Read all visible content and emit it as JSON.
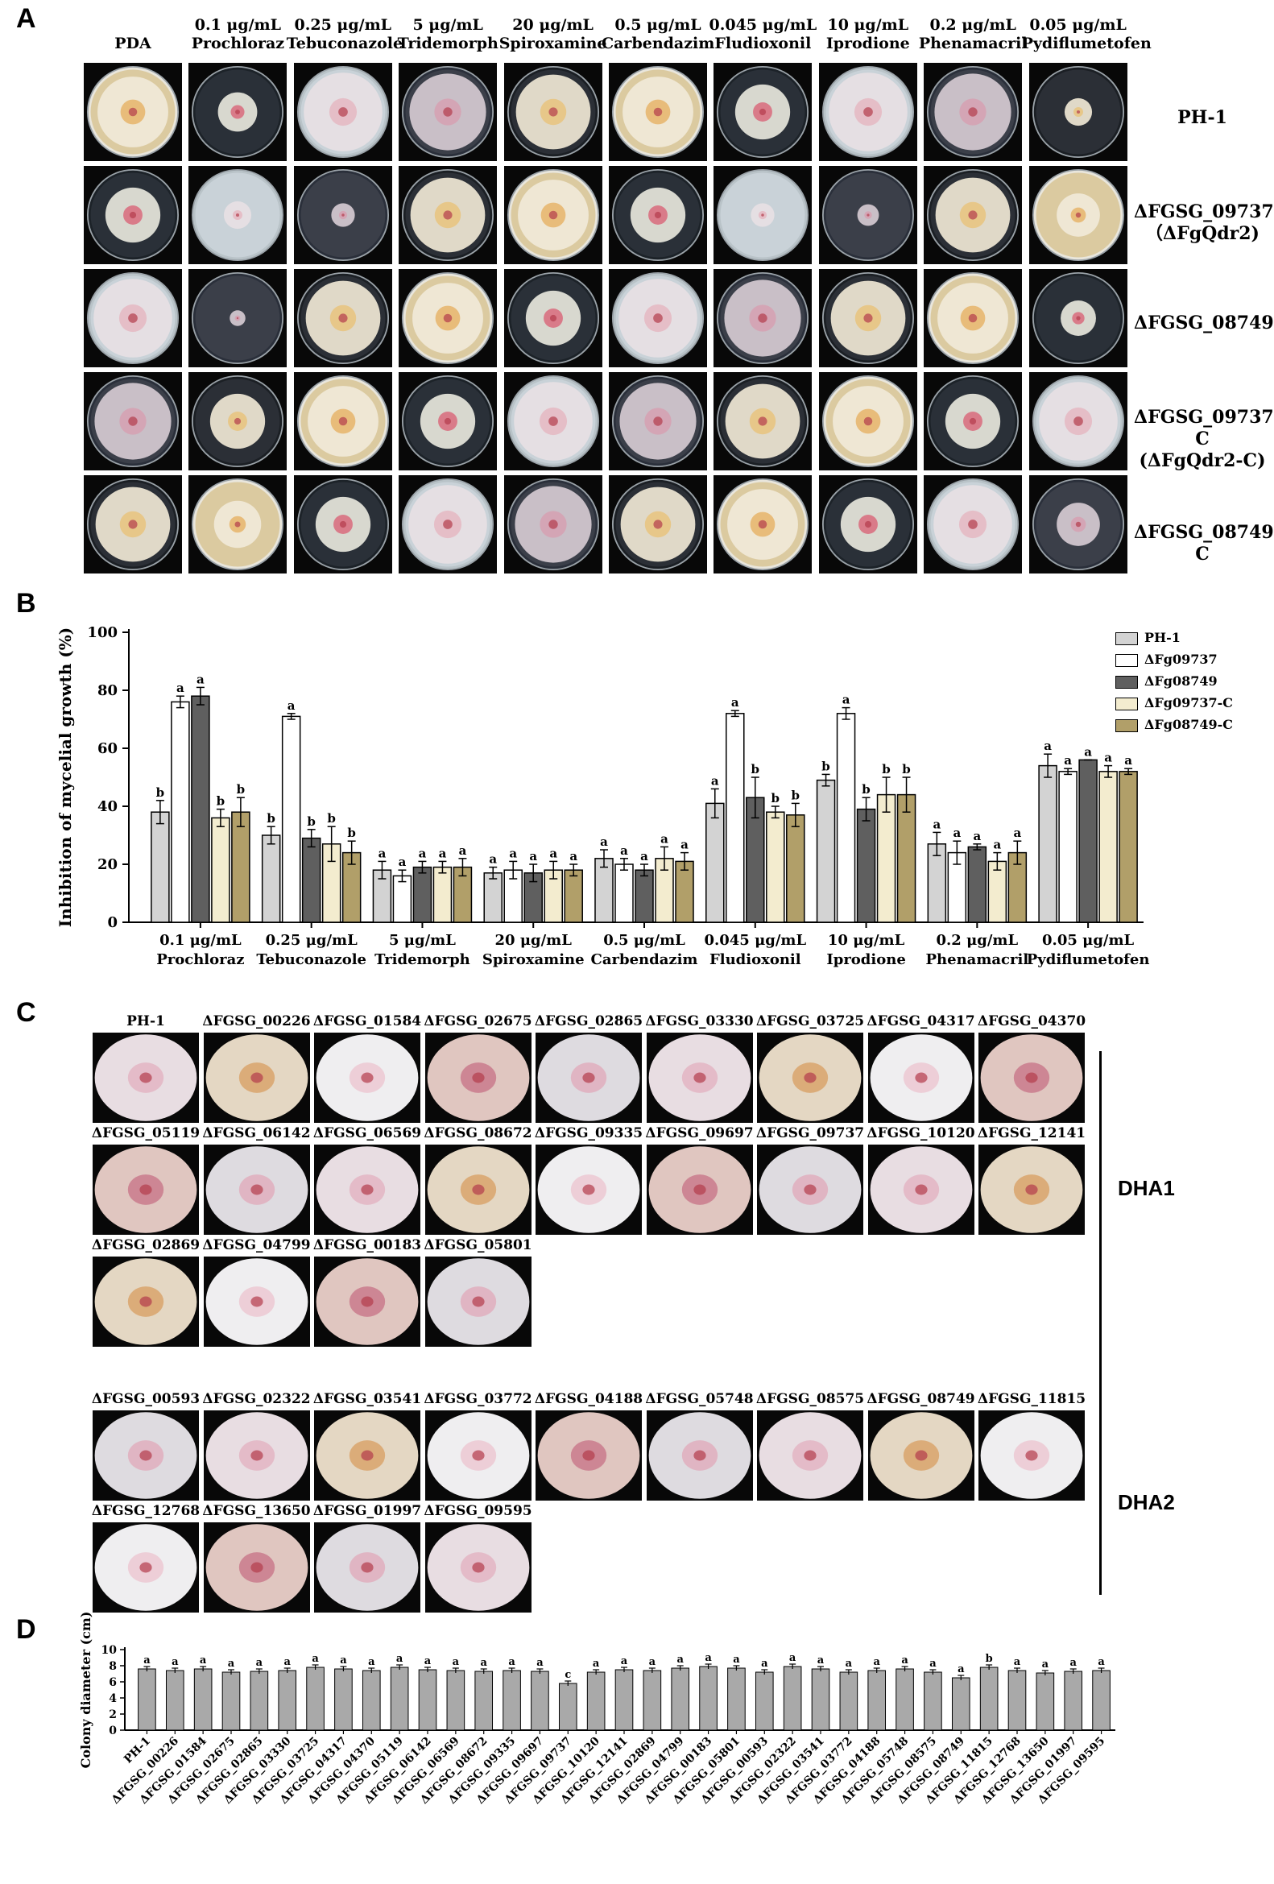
{
  "panels": {
    "a": "A",
    "b": "B",
    "c": "C",
    "d": "D"
  },
  "panelA": {
    "columns": [
      {
        "line1": "",
        "line2": "PDA"
      },
      {
        "line1": "0.1 μg/mL",
        "line2": "Prochloraz"
      },
      {
        "line1": "0.25 μg/mL",
        "line2": "Tebuconazole"
      },
      {
        "line1": "5 μg/mL",
        "line2": "Tridemorph"
      },
      {
        "line1": "20 μg/mL",
        "line2": "Spiroxamine"
      },
      {
        "line1": "0.5 μg/mL",
        "line2": "Carbendazim"
      },
      {
        "line1": "0.045 μg/mL",
        "line2": "Fludioxonil"
      },
      {
        "line1": "10 μg/mL",
        "line2": "Iprodione"
      },
      {
        "line1": "0.2 μg/mL",
        "line2": "Phenamacril"
      },
      {
        "line1": "0.05 μg/mL",
        "line2": "Pydiflumetofen"
      }
    ],
    "rows": [
      {
        "line1": "PH-1",
        "line2": ""
      },
      {
        "line1": "ΔFGSG_09737",
        "line2": "（ΔFgQdr2)"
      },
      {
        "line1": "ΔFGSG_08749",
        "line2": ""
      },
      {
        "line1": "ΔFGSG_09737-C",
        "line2": "(ΔFgQdr2-C)"
      },
      {
        "line1": "ΔFGSG_08749-C",
        "line2": ""
      }
    ]
  },
  "chart_data": [
    {
      "type": "bar",
      "ylabel": "Inhibition of mycelial growth (%)",
      "ylim": [
        0,
        100
      ],
      "yticks": [
        "0",
        "20",
        "40",
        "60",
        "80",
        "100"
      ],
      "categories": [
        {
          "line1": "0.1 μg/mL",
          "line2": "Prochloraz"
        },
        {
          "line1": "0.25 μg/mL",
          "line2": "Tebuconazole"
        },
        {
          "line1": "5 μg/mL",
          "line2": "Tridemorph"
        },
        {
          "line1": "20 μg/mL",
          "line2": "Spiroxamine"
        },
        {
          "line1": "0.5 μg/mL",
          "line2": "Carbendazim"
        },
        {
          "line1": "0.045 μg/mL",
          "line2": "Fludioxonil"
        },
        {
          "line1": "10 μg/mL",
          "line2": "Iprodione"
        },
        {
          "line1": "0.2 μg/mL",
          "line2": "Phenamacril"
        },
        {
          "line1": "0.05 μg/mL",
          "line2": "Pydiflumetofen"
        }
      ],
      "series": [
        {
          "name": "PH-1",
          "color": "#d3d3d3",
          "values": [
            38,
            30,
            18,
            17,
            22,
            41,
            49,
            27,
            54
          ],
          "errors": [
            4,
            3,
            3,
            2,
            3,
            5,
            2,
            4,
            4
          ],
          "letters": [
            "b",
            "b",
            "a",
            "a",
            "a",
            "a",
            "b",
            "a",
            "a"
          ]
        },
        {
          "name": "ΔFg09737",
          "color": "#ffffff",
          "values": [
            76,
            71,
            16,
            18,
            20,
            72,
            72,
            24,
            52
          ],
          "errors": [
            2,
            1,
            2,
            3,
            2,
            1,
            2,
            4,
            1
          ],
          "letters": [
            "a",
            "a",
            "a",
            "a",
            "a",
            "a",
            "a",
            "a",
            "a"
          ]
        },
        {
          "name": "ΔFg08749",
          "color": "#5f5f5f",
          "values": [
            78,
            29,
            19,
            17,
            18,
            43,
            39,
            26,
            56
          ],
          "errors": [
            3,
            3,
            2,
            3,
            2,
            7,
            4,
            1,
            0
          ],
          "letters": [
            "a",
            "b",
            "a",
            "a",
            "a",
            "b",
            "b",
            "a",
            "a"
          ]
        },
        {
          "name": "ΔFg09737-C",
          "color": "#f3eccf",
          "values": [
            36,
            27,
            19,
            18,
            22,
            38,
            44,
            21,
            52
          ],
          "errors": [
            3,
            6,
            2,
            3,
            4,
            2,
            6,
            3,
            2
          ],
          "letters": [
            "b",
            "b",
            "a",
            "a",
            "a",
            "b",
            "b",
            "a",
            "a"
          ]
        },
        {
          "name": "ΔFg08749-C",
          "color": "#b19f69",
          "values": [
            38,
            24,
            19,
            18,
            21,
            37,
            44,
            24,
            52
          ],
          "errors": [
            5,
            4,
            3,
            2,
            3,
            4,
            6,
            4,
            1
          ],
          "letters": [
            "b",
            "b",
            "a",
            "a",
            "a",
            "b",
            "b",
            "a",
            "a"
          ]
        }
      ]
    },
    {
      "type": "bar",
      "ylabel": "Colony diameter (cm)",
      "ylim": [
        0,
        10
      ],
      "yticks": [
        "0",
        "2",
        "4",
        "6",
        "8",
        "10"
      ],
      "categories": [
        "PH-1",
        "ΔFGSG_00226",
        "ΔFGSG_01584",
        "ΔFGSG_02675",
        "ΔFGSG_02865",
        "ΔFGSG_03330",
        "ΔFGSG_03725",
        "ΔFGSG_04317",
        "ΔFGSG_04370",
        "ΔFGSG_05119",
        "ΔFGSG_06142",
        "ΔFGSG_06569",
        "ΔFGSG_08672",
        "ΔFGSG_09335",
        "ΔFGSG_09697",
        "ΔFGSG_09737",
        "ΔFGSG_10120",
        "ΔFGSG_12141",
        "ΔFGSG_02869",
        "ΔFGSG_04799",
        "ΔFGSG_00183",
        "ΔFGSG_05801",
        "ΔFGSG_00593",
        "ΔFGSG_02322",
        "ΔFGSG_03541",
        "ΔFGSG_03772",
        "ΔFGSG_04188",
        "ΔFGSG_05748",
        "ΔFGSG_08575",
        "ΔFGSG_08749",
        "ΔFGSG_11815",
        "ΔFGSG_12768",
        "ΔFGSG_13650",
        "ΔFGSG_01997",
        "ΔFGSG_09595"
      ],
      "values": [
        7.6,
        7.4,
        7.6,
        7.2,
        7.3,
        7.4,
        7.8,
        7.6,
        7.4,
        7.8,
        7.5,
        7.4,
        7.3,
        7.4,
        7.3,
        5.8,
        7.2,
        7.5,
        7.4,
        7.7,
        7.9,
        7.7,
        7.2,
        7.9,
        7.6,
        7.2,
        7.4,
        7.6,
        7.2,
        6.5,
        7.8,
        7.4,
        7.1,
        7.3,
        7.4
      ],
      "letters": [
        "a",
        "a",
        "a",
        "a",
        "a",
        "a",
        "a",
        "a",
        "a",
        "a",
        "a",
        "a",
        "a",
        "a",
        "a",
        "c",
        "a",
        "a",
        "a",
        "a",
        "a",
        "a",
        "a",
        "a",
        "a",
        "a",
        "a",
        "a",
        "a",
        "a",
        "b",
        "a",
        "a",
        "a",
        "a"
      ]
    }
  ],
  "panelC": {
    "rows": [
      [
        "PH-1",
        "ΔFGSG_00226",
        "ΔFGSG_01584",
        "ΔFGSG_02675",
        "ΔFGSG_02865",
        "ΔFGSG_03330",
        "ΔFGSG_03725",
        "ΔFGSG_04317",
        "ΔFGSG_04370"
      ],
      [
        "ΔFGSG_05119",
        "ΔFGSG_06142",
        "ΔFGSG_06569",
        "ΔFGSG_08672",
        "ΔFGSG_09335",
        "ΔFGSG_09697",
        "ΔFGSG_09737",
        "ΔFGSG_10120",
        "ΔFGSG_12141"
      ],
      [
        "ΔFGSG_02869",
        "ΔFGSG_04799",
        "ΔFGSG_00183",
        "ΔFGSG_05801"
      ],
      [
        "ΔFGSG_00593",
        "ΔFGSG_02322",
        "ΔFGSG_03541",
        "ΔFGSG_03772",
        "ΔFGSG_04188",
        "ΔFGSG_05748",
        "ΔFGSG_08575",
        "ΔFGSG_08749",
        "ΔFGSG_11815"
      ],
      [
        "ΔFGSG_12768",
        "ΔFGSG_13650",
        "ΔFGSG_01997",
        "ΔFGSG_09595"
      ]
    ],
    "groups": {
      "dha1": "DHA1",
      "dha2": "DHA2"
    }
  }
}
